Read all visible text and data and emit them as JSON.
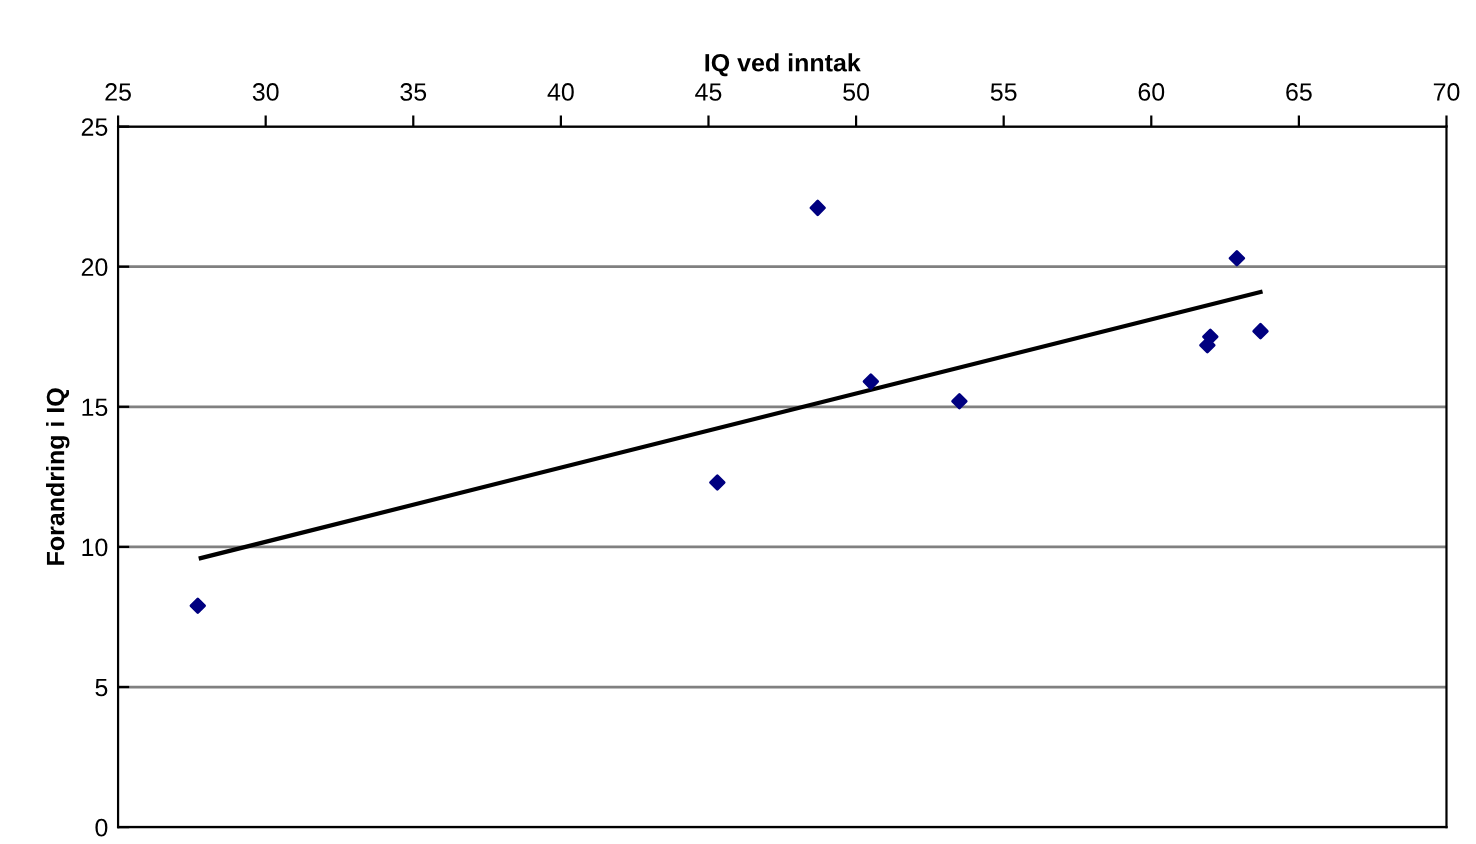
{
  "chart_data": {
    "type": "scatter",
    "xlabel": "IQ ved inntak",
    "ylabel": "Forandring i IQ",
    "xlim": [
      25,
      70
    ],
    "xticks": [
      25,
      30,
      35,
      40,
      45,
      50,
      55,
      60,
      65,
      70
    ],
    "ylim": [
      0,
      25
    ],
    "yticks": [
      0,
      5,
      10,
      15,
      20,
      25
    ],
    "grid": "y",
    "marker": "diamond",
    "series": [
      {
        "color": "#000080",
        "x": [
          27.7,
          45.3,
          48.7,
          50.5,
          53.5,
          61.9,
          62.0,
          62.9,
          63.7
        ],
        "values": [
          7.9,
          12.3,
          22.1,
          15.9,
          15.2,
          17.2,
          17.5,
          20.3,
          17.7
        ]
      },
      {
        "type": "line",
        "color": "#000000",
        "x": [
          27.8,
          63.7
        ],
        "values": [
          9.6,
          19.1
        ],
        "marker": "none"
      }
    ]
  }
}
